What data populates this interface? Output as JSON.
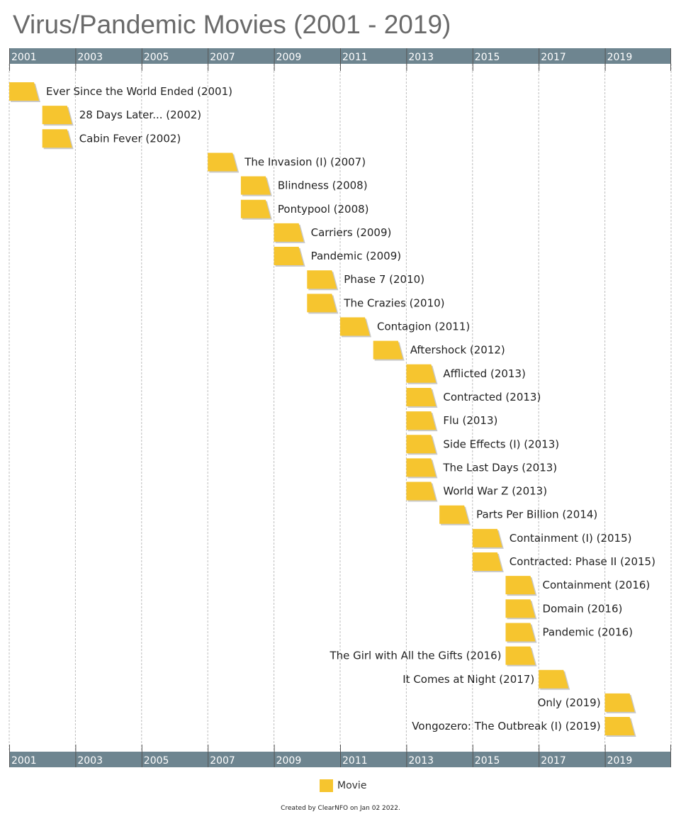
{
  "page": {
    "title": "Virus/Pandemic Movies (2001 - 2019)",
    "credit": "Created by ClearNFO on Jan 02 2022."
  },
  "legend": {
    "label": "Movie",
    "color": "#f6c52f"
  },
  "colors": {
    "axis_band": "#6e8590",
    "axis_text": "#ffffff",
    "bar": "#f6c52f",
    "bar_shadow": "#c9c9c9",
    "gridline": "#bdbdbd",
    "label_text": "#222222"
  },
  "chart_data": {
    "type": "timeline",
    "title": "Virus/Pandemic Movies (2001 - 2019)",
    "x_range": [
      2001,
      2021
    ],
    "x_ticks": [
      2001,
      2003,
      2005,
      2007,
      2009,
      2011,
      2013,
      2015,
      2017,
      2019
    ],
    "axis_position": "top and bottom",
    "grid": true,
    "legend_position": "bottom-center",
    "series": [
      {
        "name": "Movie",
        "items": [
          {
            "label": "Ever Since the World Ended (2001)",
            "year": 2001
          },
          {
            "label": "28 Days Later... (2002)",
            "year": 2002
          },
          {
            "label": "Cabin Fever (2002)",
            "year": 2002
          },
          {
            "label": "The Invasion (I) (2007)",
            "year": 2007
          },
          {
            "label": "Blindness (2008)",
            "year": 2008
          },
          {
            "label": "Pontypool (2008)",
            "year": 2008
          },
          {
            "label": "Carriers (2009)",
            "year": 2009
          },
          {
            "label": "Pandemic (2009)",
            "year": 2009
          },
          {
            "label": "Phase 7 (2010)",
            "year": 2010
          },
          {
            "label": "The Crazies (2010)",
            "year": 2010
          },
          {
            "label": "Contagion (2011)",
            "year": 2011
          },
          {
            "label": "Aftershock (2012)",
            "year": 2012
          },
          {
            "label": "Afflicted (2013)",
            "year": 2013
          },
          {
            "label": "Contracted (2013)",
            "year": 2013
          },
          {
            "label": "Flu (2013)",
            "year": 2013
          },
          {
            "label": "Side Effects (I) (2013)",
            "year": 2013
          },
          {
            "label": "The Last Days (2013)",
            "year": 2013
          },
          {
            "label": "World War Z (2013)",
            "year": 2013
          },
          {
            "label": "Parts Per Billion (2014)",
            "year": 2014
          },
          {
            "label": "Containment (I) (2015)",
            "year": 2015
          },
          {
            "label": "Contracted: Phase II (2015)",
            "year": 2015
          },
          {
            "label": "Containment (2016)",
            "year": 2016
          },
          {
            "label": "Domain (2016)",
            "year": 2016
          },
          {
            "label": "Pandemic (2016)",
            "year": 2016
          },
          {
            "label": "The Girl with All the Gifts (2016)",
            "year": 2016,
            "label_side": "left"
          },
          {
            "label": "It Comes at Night (2017)",
            "year": 2017,
            "label_side": "left"
          },
          {
            "label": "Only (2019)",
            "year": 2019,
            "label_side": "left"
          },
          {
            "label": "Vongozero: The Outbreak (I) (2019)",
            "year": 2019,
            "label_side": "left"
          }
        ]
      }
    ]
  }
}
